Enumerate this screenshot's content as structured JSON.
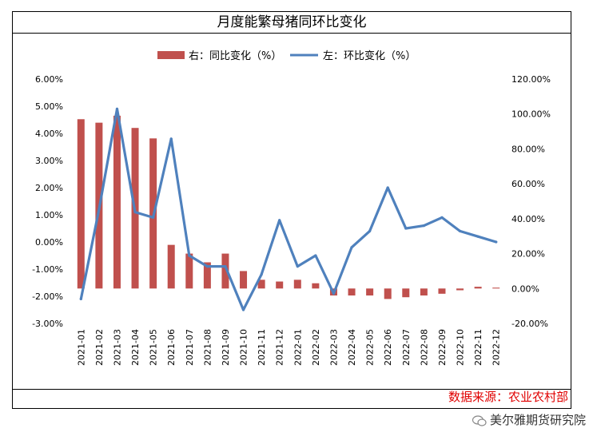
{
  "chart_data": {
    "type": "bar+line",
    "title": "月度能繁母猪同环比变化",
    "categories": [
      "2021-01",
      "2021-02",
      "2021-03",
      "2021-04",
      "2021-05",
      "2021-06",
      "2021-07",
      "2021-08",
      "2021-09",
      "2021-10",
      "2021-11",
      "2021-12",
      "2022-01",
      "2022-02",
      "2022-03",
      "2022-04",
      "2022-05",
      "2022-06",
      "2022-07",
      "2022-08",
      "2022-09",
      "2022-10",
      "2022-11",
      "2022-12"
    ],
    "series": [
      {
        "name": "右：同比变化（%）",
        "type": "bar",
        "axis": "right",
        "color": "#c0504d",
        "values": [
          97,
          95,
          99,
          92,
          86,
          25,
          20,
          15,
          20,
          10,
          5,
          4,
          5,
          3,
          -4,
          -4,
          -4,
          -6,
          -5,
          -4,
          -3,
          -1,
          1,
          0.5
        ]
      },
      {
        "name": "左：环比变化（%）",
        "type": "line",
        "axis": "left",
        "color": "#4f81bd",
        "values": [
          -2.1,
          1.2,
          4.9,
          1.1,
          0.9,
          3.8,
          -0.5,
          -0.9,
          -0.9,
          -2.5,
          -1.2,
          0.8,
          -0.9,
          -0.5,
          -1.9,
          -0.2,
          0.4,
          2.0,
          0.5,
          0.6,
          0.9,
          0.4,
          0.2,
          0.0
        ]
      }
    ],
    "left_axis": {
      "min": -3,
      "max": 6,
      "step": 1,
      "tick_labels": [
        "-3.00%",
        "-2.00%",
        "-1.00%",
        "0.00%",
        "1.00%",
        "2.00%",
        "3.00%",
        "4.00%",
        "5.00%",
        "6.00%"
      ]
    },
    "right_axis": {
      "min": -20,
      "max": 120,
      "step": 20,
      "tick_labels": [
        "-20.00%",
        "0.00%",
        "20.00%",
        "40.00%",
        "60.00%",
        "80.00%",
        "100.00%",
        "120.00%"
      ]
    },
    "legend": {
      "position": "top",
      "items": [
        "右：同比变化（%）",
        "左：环比变化（%）"
      ]
    }
  },
  "source_text": "数据来源：农业农村部",
  "watermark_text": "美尔雅期货研究院"
}
